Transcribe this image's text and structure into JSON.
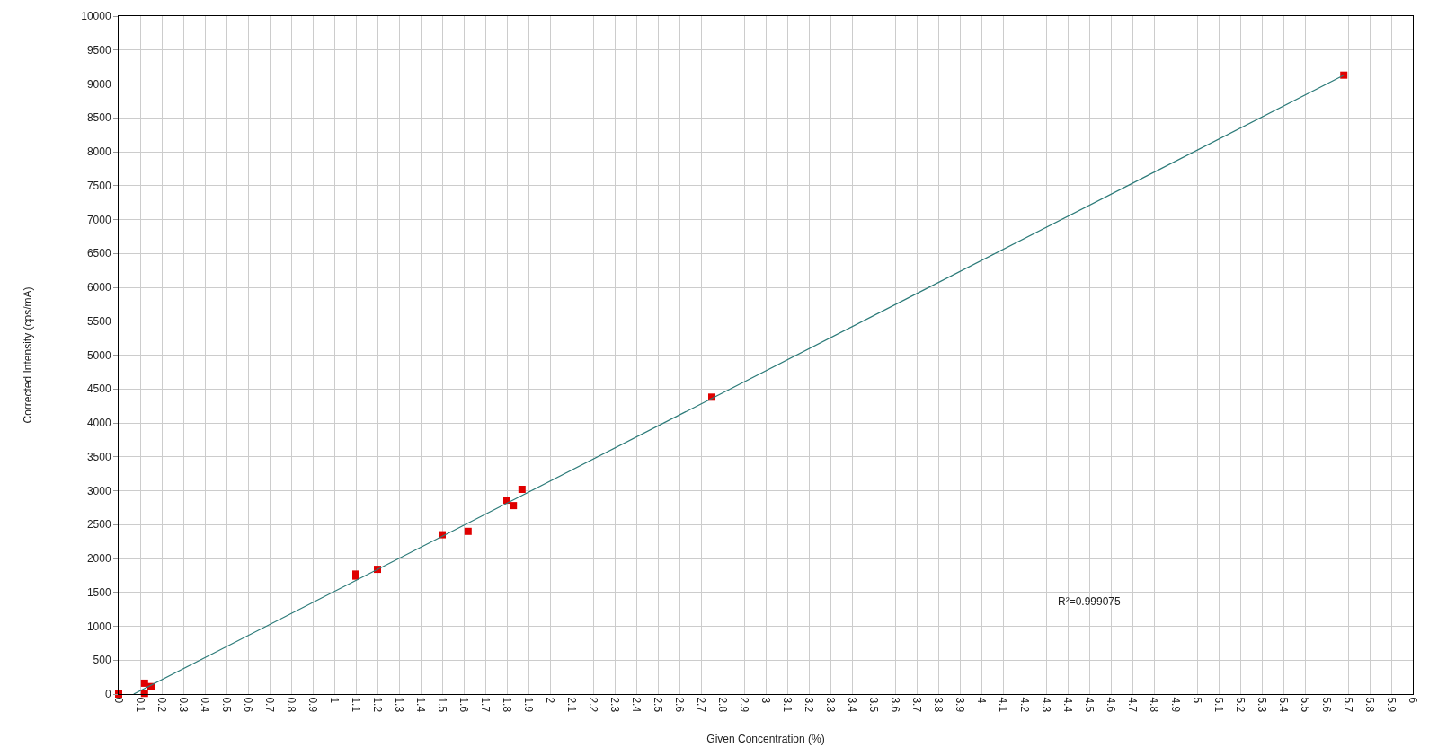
{
  "chart_data": {
    "type": "scatter",
    "xlabel": "Given Concentration (%)",
    "ylabel": "Corrected Intensity (cps/mA)",
    "annotations": [
      "R²=0.999075"
    ],
    "marker": "square",
    "series": [
      {
        "color": "#e00000",
        "x": [
          0,
          0.12,
          0.12,
          0.15,
          1.1,
          1.1,
          1.2,
          1.5,
          1.62,
          1.8,
          1.83,
          1.87,
          2.75,
          5.68
        ],
        "values": [
          0,
          10,
          160,
          110,
          1740,
          1770,
          1840,
          2350,
          2400,
          2860,
          2780,
          3020,
          4380,
          9130
        ]
      },
      {
        "type": "line",
        "color": "#2b7a78",
        "marker": "none",
        "line_style": "solid",
        "x": [
          0.07,
          5.68
        ],
        "values": [
          0,
          9130
        ]
      }
    ],
    "xlim": [
      0,
      6
    ],
    "ylim": [
      0,
      10000
    ],
    "xticks": [
      0,
      0.1,
      0.2,
      0.3,
      0.4,
      0.5,
      0.6,
      0.7,
      0.8,
      0.9,
      1,
      1.1,
      1.2,
      1.3,
      1.4,
      1.5,
      1.6,
      1.7,
      1.8,
      1.9,
      2,
      2.1,
      2.2,
      2.3,
      2.4,
      2.5,
      2.6,
      2.7,
      2.8,
      2.9,
      3,
      3.1,
      3.2,
      3.3,
      3.4,
      3.5,
      3.6,
      3.7,
      3.8,
      3.9,
      4,
      4.1,
      4.2,
      4.3,
      4.4,
      4.5,
      4.6,
      4.7,
      4.8,
      4.9,
      5,
      5.1,
      5.2,
      5.3,
      5.4,
      5.5,
      5.6,
      5.7,
      5.8,
      5.9,
      6
    ],
    "yticks": [
      0,
      500,
      1000,
      1500,
      2000,
      2500,
      3000,
      3500,
      4000,
      4500,
      5000,
      5500,
      6000,
      6500,
      7000,
      7500,
      8000,
      8500,
      9000,
      9500,
      10000
    ],
    "grid": true
  }
}
